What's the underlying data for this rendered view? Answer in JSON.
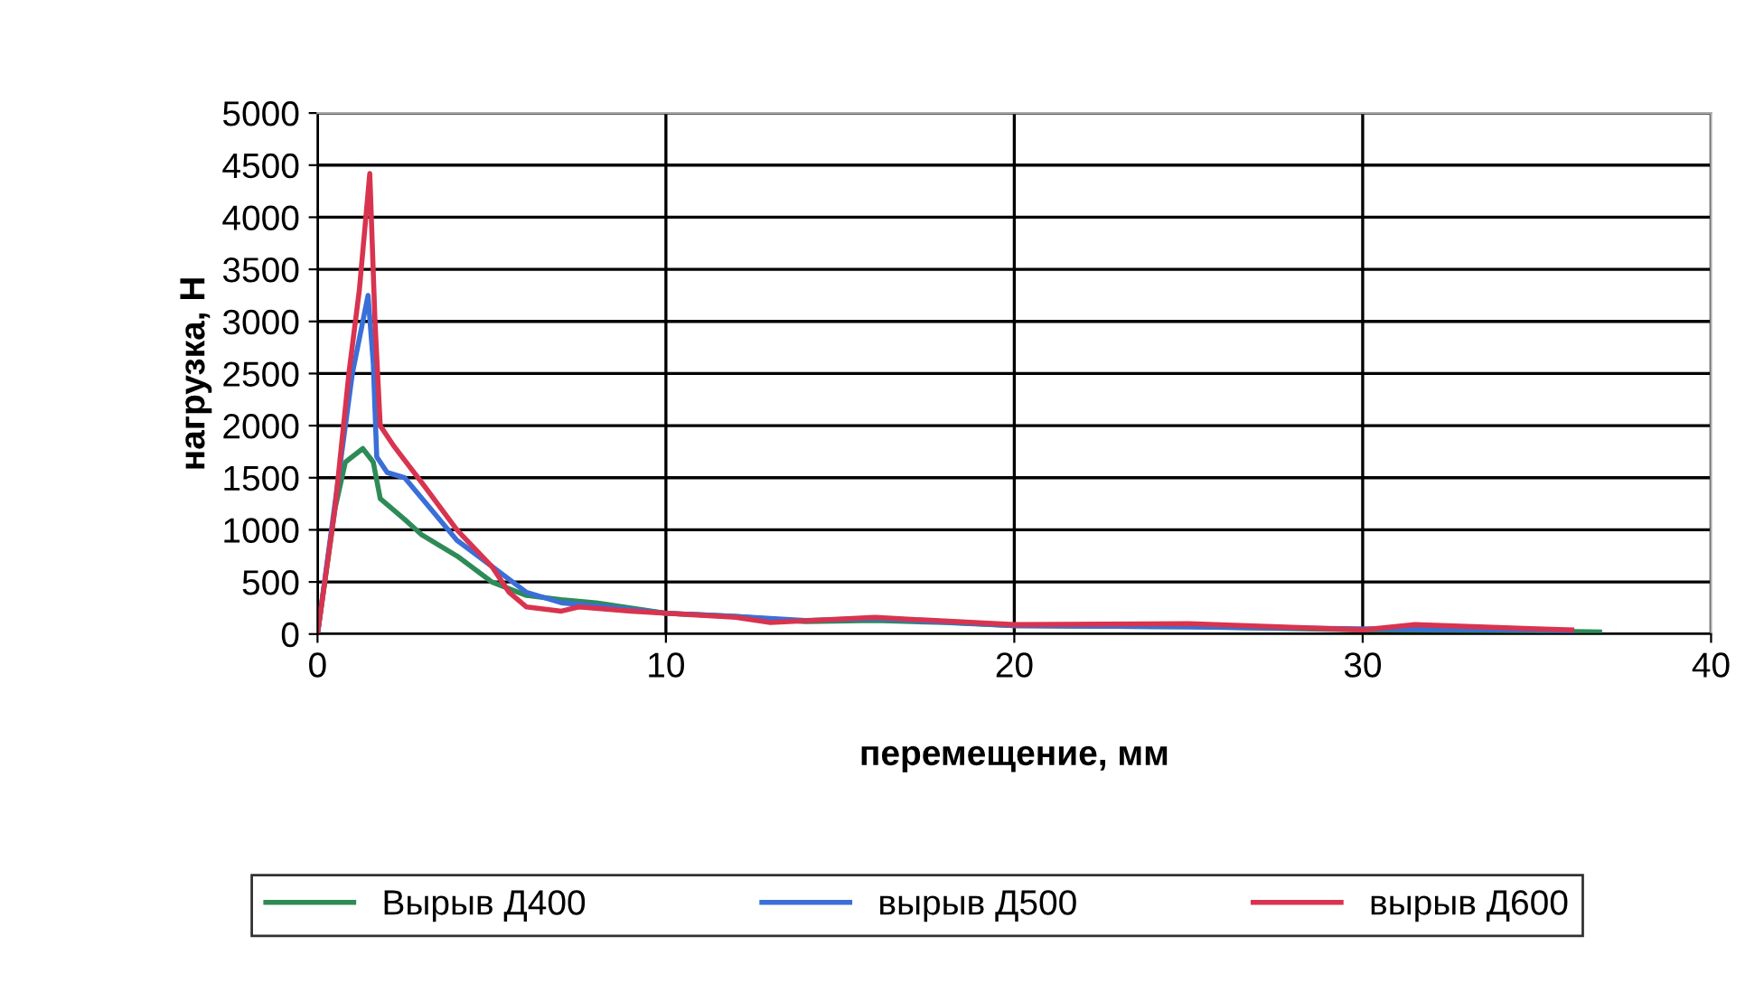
{
  "chart_data": {
    "type": "line",
    "xlabel": "перемещение, мм",
    "ylabel": "нагрузка, Н",
    "xlim": [
      0,
      40
    ],
    "ylim": [
      0,
      5000
    ],
    "xticks": [
      0,
      10,
      20,
      30,
      40
    ],
    "yticks": [
      0,
      500,
      1000,
      1500,
      2000,
      2500,
      3000,
      3500,
      4000,
      4500,
      5000
    ],
    "grid": true,
    "legend": "bottom",
    "marker": "none",
    "series": [
      {
        "name": "Вырыв Д400",
        "color": "#2e8b57",
        "x": [
          0,
          0.5,
          0.8,
          1.3,
          1.6,
          1.8,
          2.5,
          3,
          4,
          5,
          6,
          7,
          8,
          9,
          10,
          12,
          14,
          16,
          18,
          20,
          25,
          30,
          35,
          36.8
        ],
        "values": [
          0,
          1200,
          1650,
          1780,
          1650,
          1300,
          1100,
          950,
          750,
          500,
          370,
          330,
          300,
          250,
          200,
          170,
          120,
          130,
          110,
          80,
          70,
          40,
          30,
          20
        ]
      },
      {
        "name": "вырыв Д500",
        "color": "#3a6fd8",
        "x": [
          0,
          0.6,
          1,
          1.3,
          1.45,
          1.6,
          1.7,
          2,
          2.5,
          3,
          4,
          5,
          6,
          7,
          8,
          10,
          12,
          14,
          16,
          20,
          25,
          30,
          35,
          36
        ],
        "values": [
          0,
          1500,
          2500,
          3000,
          3250,
          2600,
          1700,
          1550,
          1500,
          1300,
          900,
          650,
          400,
          300,
          270,
          200,
          170,
          130,
          150,
          80,
          70,
          50,
          40,
          30
        ]
      },
      {
        "name": "вырыв Д600",
        "color": "#d8344f",
        "x": [
          0,
          0.5,
          0.9,
          1.2,
          1.5,
          1.65,
          1.8,
          2.2,
          3,
          4,
          5,
          5.5,
          6,
          7,
          7.5,
          9,
          10,
          12,
          13,
          16,
          20,
          25,
          30,
          31.5,
          35,
          36
        ],
        "values": [
          0,
          1200,
          2500,
          3300,
          4420,
          3000,
          2000,
          1800,
          1450,
          1000,
          650,
          400,
          260,
          220,
          260,
          220,
          200,
          160,
          110,
          160,
          90,
          100,
          40,
          90,
          50,
          40
        ]
      }
    ]
  }
}
